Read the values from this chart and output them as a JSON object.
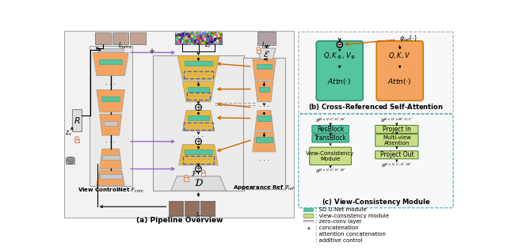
{
  "bg_color": "#ffffff",
  "orange_unet": "#F4A460",
  "teal_block": "#55C4A0",
  "yellow_unet": "#E8B840",
  "light_green": "#CCDD88",
  "gray_block": "#C8C8C8",
  "panel_bg": "#EBEBEB",
  "arrow_orange": "#CC6600",
  "arrow_purple": "#9966CC",
  "blue_dash": "#4466CC",
  "green_dash": "#55AA33",
  "cyan_dash": "#44AACC",
  "vcn_label": "View ControlNet $\\mathcal{F}_{com}$",
  "aref_label": "Appearance Ref $\\mathcal{F}_{ref}$",
  "title_a": "(a) Pipeline Overview",
  "title_b": "(b) Cross-Referenced Self-Attention",
  "title_c": "(c) View-Consistency Module",
  "legend_items": [
    [
      "teal",
      "SD U-Net module"
    ],
    [
      "light_green",
      "view-consistency module"
    ],
    [
      "gray",
      "zero-conv layer"
    ],
    [
      "oplus",
      "concatenation"
    ],
    [
      "orange_arrow",
      "attention concatenation"
    ],
    [
      "purple_arrow",
      "additive control"
    ]
  ]
}
